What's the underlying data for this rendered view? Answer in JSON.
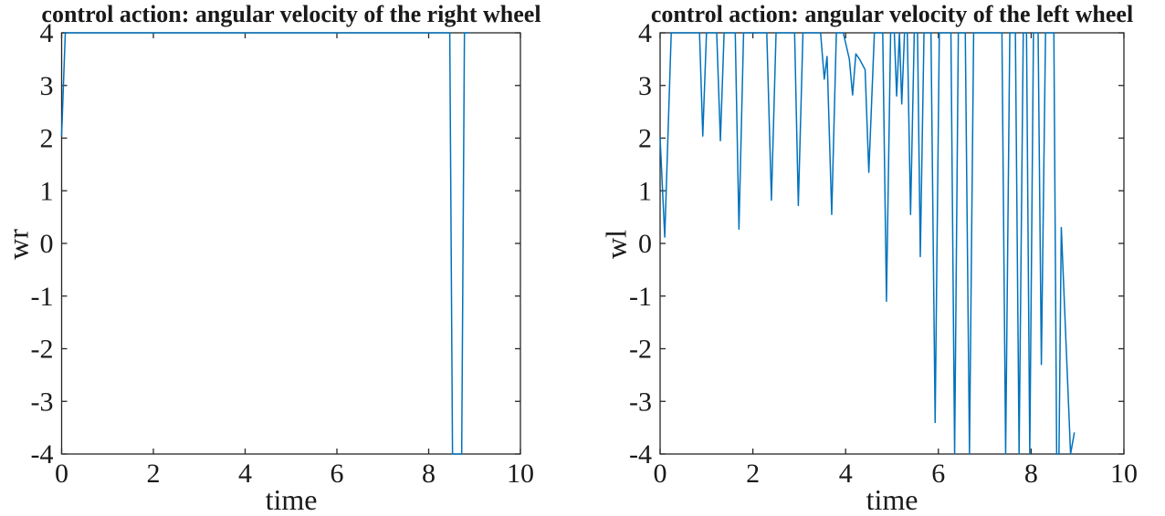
{
  "figure": {
    "background": "#ffffff",
    "line_color": "#0072BD",
    "axis_color": "#262626",
    "text_color": "#1a1a1a"
  },
  "chart_data": [
    {
      "id": "right-wheel",
      "type": "line",
      "title": "control action: angular velocity of the right wheel",
      "xlabel": "time",
      "ylabel": "wr",
      "xlim": [
        0,
        10
      ],
      "ylim": [
        -4,
        4
      ],
      "xticks": [
        0,
        2,
        4,
        6,
        8,
        10
      ],
      "yticks": [
        -4,
        -3,
        -2,
        -1,
        0,
        1,
        2,
        3,
        4
      ],
      "grid": false,
      "legend": null,
      "series": [
        {
          "name": "wr",
          "points": [
            [
              0,
              2.05
            ],
            [
              0.08,
              4
            ],
            [
              8.46,
              4
            ],
            [
              8.52,
              -4
            ],
            [
              8.72,
              -4
            ],
            [
              8.78,
              4
            ],
            [
              8.88,
              4
            ]
          ]
        }
      ]
    },
    {
      "id": "left-wheel",
      "type": "line",
      "title": "control action: angular velocity of the left wheel",
      "xlabel": "time",
      "ylabel": "wl",
      "xlim": [
        0,
        10
      ],
      "ylim": [
        -4,
        4
      ],
      "xticks": [
        0,
        2,
        4,
        6,
        8,
        10
      ],
      "yticks": [
        -4,
        -3,
        -2,
        -1,
        0,
        1,
        2,
        3,
        4
      ],
      "grid": false,
      "legend": null,
      "series": [
        {
          "name": "wl",
          "points": [
            [
              0,
              2.0
            ],
            [
              0.1,
              0.12
            ],
            [
              0.24,
              4
            ],
            [
              0.85,
              4
            ],
            [
              0.92,
              2.04
            ],
            [
              1.0,
              4
            ],
            [
              1.22,
              4
            ],
            [
              1.3,
              1.95
            ],
            [
              1.38,
              4
            ],
            [
              1.62,
              4
            ],
            [
              1.7,
              0.27
            ],
            [
              1.8,
              4
            ],
            [
              2.3,
              4
            ],
            [
              2.4,
              0.82
            ],
            [
              2.5,
              4
            ],
            [
              2.9,
              4
            ],
            [
              2.98,
              0.72
            ],
            [
              3.08,
              4
            ],
            [
              3.46,
              4
            ],
            [
              3.54,
              3.12
            ],
            [
              3.6,
              3.55
            ],
            [
              3.7,
              0.55
            ],
            [
              3.8,
              4
            ],
            [
              3.95,
              4
            ],
            [
              4.08,
              3.5
            ],
            [
              4.15,
              2.82
            ],
            [
              4.22,
              3.6
            ],
            [
              4.3,
              3.5
            ],
            [
              4.42,
              3.3
            ],
            [
              4.5,
              1.35
            ],
            [
              4.62,
              4
            ],
            [
              4.8,
              4
            ],
            [
              4.88,
              -1.1
            ],
            [
              4.97,
              4
            ],
            [
              5.05,
              4
            ],
            [
              5.1,
              2.8
            ],
            [
              5.16,
              4
            ],
            [
              5.21,
              2.65
            ],
            [
              5.27,
              4
            ],
            [
              5.33,
              4
            ],
            [
              5.4,
              0.55
            ],
            [
              5.48,
              4
            ],
            [
              5.55,
              4
            ],
            [
              5.61,
              -0.25
            ],
            [
              5.69,
              4
            ],
            [
              5.84,
              4
            ],
            [
              5.93,
              -3.4
            ],
            [
              6.02,
              4
            ],
            [
              6.27,
              4
            ],
            [
              6.35,
              -4
            ],
            [
              6.43,
              4
            ],
            [
              6.58,
              4
            ],
            [
              6.67,
              -4
            ],
            [
              6.76,
              4
            ],
            [
              7.37,
              4
            ],
            [
              7.45,
              -4
            ],
            [
              7.54,
              4
            ],
            [
              7.66,
              4
            ],
            [
              7.74,
              -4
            ],
            [
              7.83,
              4
            ],
            [
              7.9,
              4
            ],
            [
              7.97,
              -4
            ],
            [
              8.05,
              4
            ],
            [
              8.15,
              4
            ],
            [
              8.22,
              -2.3
            ],
            [
              8.31,
              4
            ],
            [
              8.49,
              4
            ],
            [
              8.55,
              -4
            ],
            [
              8.6,
              -4
            ],
            [
              8.65,
              0.3
            ],
            [
              8.85,
              -4
            ],
            [
              8.93,
              -3.6
            ]
          ]
        }
      ]
    }
  ]
}
